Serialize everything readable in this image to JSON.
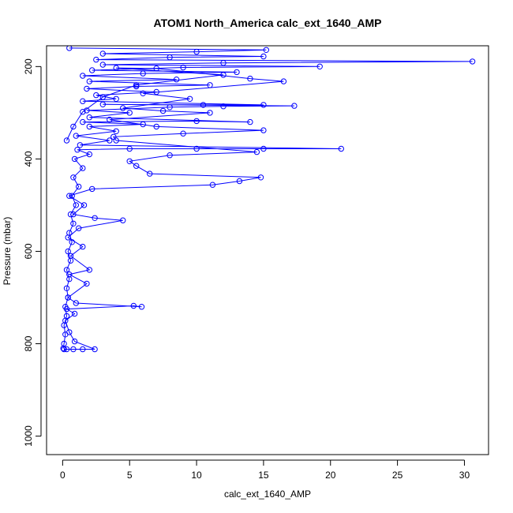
{
  "chart_data": {
    "type": "scatter",
    "title": "ATOM1 North_America calc_ext_1640_AMP",
    "xlabel": "calc_ext_1640_AMP",
    "ylabel": "Pressure (mbar)",
    "xlim": [
      -1.2,
      31.8
    ],
    "ylim": [
      1040,
      155
    ],
    "y_reversed": true,
    "xticks": [
      0,
      5,
      10,
      15,
      20,
      25,
      30
    ],
    "yticks": [
      200,
      400,
      600,
      800,
      1000
    ],
    "grid": false,
    "legend": "none",
    "series_color": "#0000ff",
    "marker": "open-circle",
    "connected": true,
    "series": [
      {
        "points": [
          [
            0.05,
            810
          ],
          [
            0.1,
            800
          ],
          [
            0.2,
            780
          ],
          [
            0.1,
            760
          ],
          [
            0.3,
            740
          ],
          [
            0.2,
            720
          ],
          [
            0.4,
            700
          ],
          [
            0.3,
            680
          ],
          [
            0.5,
            660
          ],
          [
            0.3,
            640
          ],
          [
            0.6,
            620
          ],
          [
            0.4,
            600
          ],
          [
            0.7,
            580
          ],
          [
            0.5,
            560
          ],
          [
            0.8,
            540
          ],
          [
            0.6,
            520
          ],
          [
            1.0,
            500
          ],
          [
            0.7,
            480
          ],
          [
            1.2,
            460
          ],
          [
            0.8,
            440
          ],
          [
            1.5,
            420
          ],
          [
            0.9,
            400
          ],
          [
            2.0,
            390
          ],
          [
            1.1,
            380
          ],
          [
            5.0,
            378
          ],
          [
            10.0,
            378
          ],
          [
            15.0,
            378
          ],
          [
            20.8,
            378
          ],
          [
            1.3,
            370
          ],
          [
            3.5,
            360
          ],
          [
            1.0,
            350
          ],
          [
            4.0,
            340
          ],
          [
            2.0,
            330
          ],
          [
            6.0,
            325
          ],
          [
            1.5,
            320
          ],
          [
            10.0,
            318
          ],
          [
            14.0,
            320
          ],
          [
            2.0,
            310
          ],
          [
            5.0,
            300
          ],
          [
            1.8,
            295
          ],
          [
            8.0,
            288
          ],
          [
            12.0,
            286
          ],
          [
            17.3,
            285
          ],
          [
            3.0,
            282
          ],
          [
            10.5,
            283
          ],
          [
            15.0,
            283
          ],
          [
            1.5,
            275
          ],
          [
            4.0,
            270
          ],
          [
            2.5,
            262
          ],
          [
            7.0,
            255
          ],
          [
            1.8,
            248
          ],
          [
            5.5,
            243
          ],
          [
            11.0,
            240
          ],
          [
            2.0,
            232
          ],
          [
            8.5,
            228
          ],
          [
            1.5,
            220
          ],
          [
            6.0,
            215
          ],
          [
            13.0,
            212
          ],
          [
            2.2,
            208
          ],
          [
            9.0,
            202
          ],
          [
            19.2,
            200
          ],
          [
            3.0,
            196
          ],
          [
            12.0,
            192
          ],
          [
            30.6,
            189
          ],
          [
            2.5,
            185
          ],
          [
            8.0,
            180
          ],
          [
            15.0,
            178
          ],
          [
            3.0,
            172
          ],
          [
            10.0,
            168
          ],
          [
            15.2,
            164
          ],
          [
            0.5,
            160
          ]
        ]
      },
      {
        "points": [
          [
            0.1,
            812
          ],
          [
            0.3,
            812
          ],
          [
            0.8,
            812
          ],
          [
            1.5,
            812
          ],
          [
            2.4,
            812
          ],
          [
            0.9,
            795
          ],
          [
            0.5,
            775
          ],
          [
            0.2,
            750
          ],
          [
            0.9,
            735
          ],
          [
            0.3,
            725
          ],
          [
            5.3,
            718
          ],
          [
            5.9,
            720
          ],
          [
            1.0,
            712
          ],
          [
            0.4,
            700
          ],
          [
            1.8,
            670
          ],
          [
            0.5,
            650
          ],
          [
            2.0,
            640
          ],
          [
            0.6,
            610
          ],
          [
            1.5,
            590
          ],
          [
            0.4,
            570
          ],
          [
            1.2,
            550
          ],
          [
            4.5,
            533
          ],
          [
            2.4,
            528
          ],
          [
            0.8,
            520
          ],
          [
            1.6,
            500
          ],
          [
            0.5,
            480
          ],
          [
            2.2,
            465
          ],
          [
            11.2,
            456
          ],
          [
            13.2,
            448
          ],
          [
            14.8,
            440
          ],
          [
            6.5,
            432
          ],
          [
            5.5,
            415
          ],
          [
            5.0,
            405
          ],
          [
            8.0,
            392
          ],
          [
            14.5,
            385
          ],
          [
            4.0,
            360
          ],
          [
            3.8,
            352
          ],
          [
            9.0,
            345
          ],
          [
            15.0,
            338
          ],
          [
            7.0,
            330
          ],
          [
            3.5,
            315
          ],
          [
            11.0,
            300
          ],
          [
            7.5,
            296
          ],
          [
            4.5,
            290
          ],
          [
            9.5,
            270
          ],
          [
            6.0,
            258
          ],
          [
            16.5,
            232
          ],
          [
            14.0,
            226
          ],
          [
            7.0,
            204
          ],
          [
            4.0,
            203
          ],
          [
            12.0,
            218
          ],
          [
            5.5,
            240
          ],
          [
            3.0,
            266
          ],
          [
            1.5,
            298
          ],
          [
            0.8,
            330
          ],
          [
            0.3,
            360
          ]
        ]
      }
    ]
  }
}
